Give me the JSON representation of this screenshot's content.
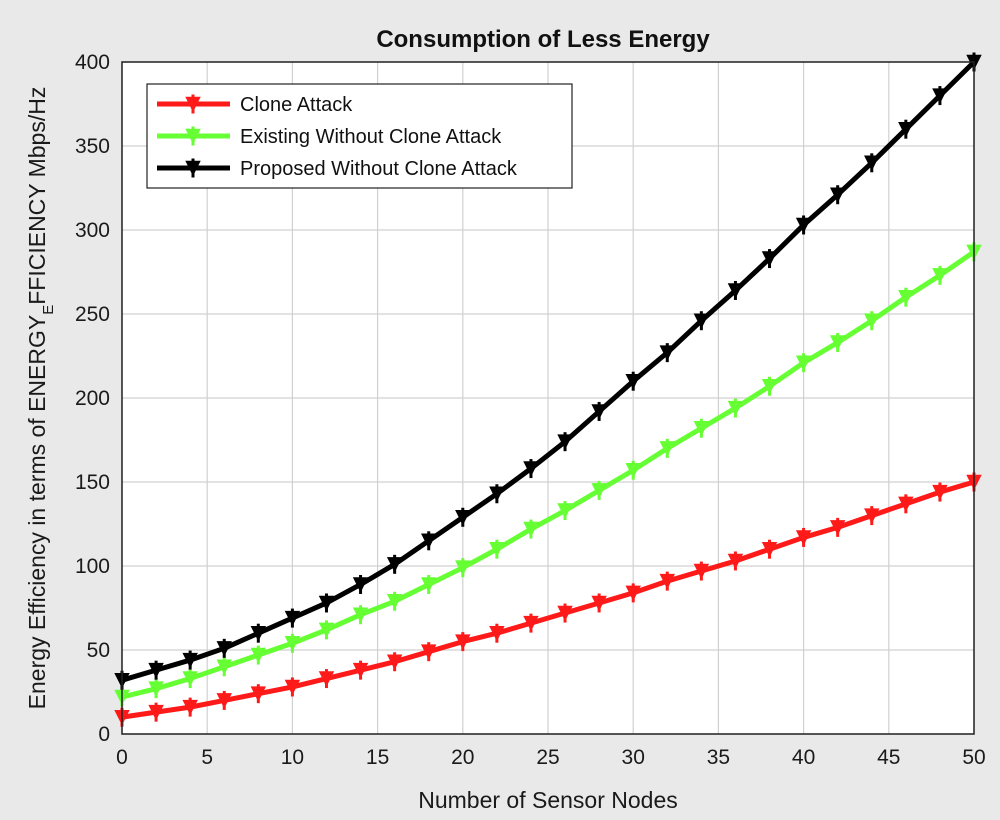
{
  "chart_data": {
    "type": "line",
    "title": "Consumption of Less Energy",
    "xlabel": "Number of Sensor Nodes",
    "ylabel_prefix": "Energy Efficiency in terms of ENERGY",
    "ylabel_subscript": "E",
    "ylabel_suffix": "FFICIENCY Mbps/Hz",
    "xlim": [
      0,
      50
    ],
    "ylim": [
      0,
      400
    ],
    "xticks": [
      0,
      5,
      10,
      15,
      20,
      25,
      30,
      35,
      40,
      45,
      50
    ],
    "yticks": [
      0,
      50,
      100,
      150,
      200,
      250,
      300,
      350,
      400
    ],
    "grid": true,
    "legend_position": "top-left",
    "x": [
      0,
      2,
      4,
      6,
      8,
      10,
      12,
      14,
      16,
      18,
      20,
      22,
      24,
      26,
      28,
      30,
      32,
      34,
      36,
      38,
      40,
      42,
      44,
      46,
      48,
      50
    ],
    "series": [
      {
        "name": "Clone Attack",
        "color": "#ff1a1a",
        "values": [
          10,
          13,
          16,
          20,
          24,
          28,
          33,
          38,
          43,
          49,
          55,
          60,
          66,
          72,
          78,
          84,
          91,
          97,
          103,
          110,
          117,
          123,
          130,
          137,
          144,
          150
        ]
      },
      {
        "name": "Existing Without Clone Attack",
        "color": "#66ff33",
        "values": [
          22,
          27,
          33,
          40,
          47,
          54,
          62,
          71,
          79,
          89,
          99,
          110,
          122,
          133,
          145,
          157,
          170,
          182,
          194,
          207,
          221,
          233,
          246,
          260,
          273,
          287
        ]
      },
      {
        "name": "Proposed Without Clone Attack",
        "color": "#000000",
        "values": [
          32,
          38,
          44,
          51,
          60,
          69,
          78,
          89,
          101,
          115,
          129,
          143,
          158,
          174,
          192,
          210,
          227,
          246,
          264,
          283,
          303,
          321,
          340,
          360,
          380,
          400
        ]
      }
    ]
  }
}
